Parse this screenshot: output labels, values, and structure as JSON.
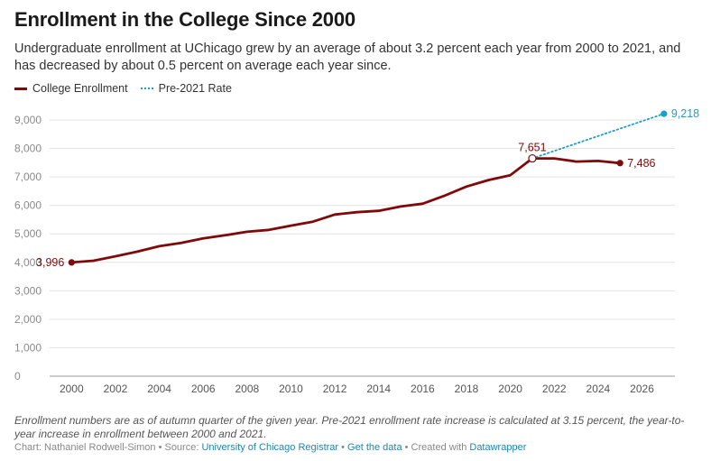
{
  "title": "Enrollment in the College Since 2000",
  "subtitle": "Undergraduate enrollment at UChicago grew by an average of about 3.2 percent each year from 2000 to 2021, and has decreased by about 0.5 percent on average each year since.",
  "legend": [
    {
      "label": "College Enrollment",
      "color": "#7f0a0a",
      "style": "solid"
    },
    {
      "label": "Pre-2021 Rate",
      "color": "#1ba1c9",
      "style": "dotted"
    }
  ],
  "notes": "Enrollment numbers are as of autumn quarter of the given year. Pre-2021 enrollment rate increase is calculated at 3.15 percent, the year-to-year increase in enrollment between 2000 and 2021.",
  "credit": {
    "prefix": "Chart: Nathaniel Rodwell-Simon • Source: ",
    "source": "University of Chicago Registrar",
    "sep1": " • ",
    "getdata": "Get the data",
    "sep2": " • Created with ",
    "tool": "Datawrapper"
  },
  "chart_data": {
    "type": "line",
    "xlim": [
      1999,
      2027.5
    ],
    "ylim": [
      0,
      9000
    ],
    "grid": true,
    "x_ticks": [
      2000,
      2002,
      2004,
      2006,
      2008,
      2010,
      2012,
      2014,
      2016,
      2018,
      2020,
      2022,
      2024,
      2026
    ],
    "y_ticks": [
      {
        "value": 0,
        "label": "0"
      },
      {
        "value": 1000,
        "label": "1,000"
      },
      {
        "value": 2000,
        "label": "2,000"
      },
      {
        "value": 3000,
        "label": "3,000"
      },
      {
        "value": 4000,
        "label": "4,000"
      },
      {
        "value": 5000,
        "label": "5,000"
      },
      {
        "value": 6000,
        "label": "6,000"
      },
      {
        "value": 7000,
        "label": "7,000"
      },
      {
        "value": 8000,
        "label": "8,000"
      },
      {
        "value": 9000,
        "label": "9,000"
      }
    ],
    "series": [
      {
        "name": "College Enrollment",
        "color": "#7f0a0a",
        "style": "solid",
        "x": [
          2000,
          2001,
          2002,
          2003,
          2004,
          2005,
          2006,
          2007,
          2008,
          2009,
          2010,
          2011,
          2012,
          2013,
          2014,
          2015,
          2016,
          2017,
          2018,
          2019,
          2020,
          2021,
          2022,
          2023,
          2024,
          2025
        ],
        "y": [
          3996,
          4055,
          4212,
          4375,
          4565,
          4680,
          4840,
          4950,
          5075,
          5140,
          5290,
          5430,
          5680,
          5760,
          5810,
          5960,
          6060,
          6340,
          6660,
          6890,
          7060,
          7651,
          7650,
          7540,
          7560,
          7486
        ]
      },
      {
        "name": "Pre-2021 Rate",
        "color": "#1ba1c9",
        "style": "dotted",
        "x": [
          2021,
          2027
        ],
        "y": [
          7651,
          9218
        ]
      }
    ],
    "annotations": [
      {
        "x": 2000,
        "y": 3996,
        "label": "3,996",
        "color": "#7f0a0a",
        "side": "left",
        "marker": "filled"
      },
      {
        "x": 2021,
        "y": 7651,
        "label": "7,651",
        "color": "#7f0a0a",
        "side": "above",
        "marker": "open"
      },
      {
        "x": 2025,
        "y": 7486,
        "label": "7,486",
        "color": "#7f0a0a",
        "side": "right",
        "marker": "filled"
      },
      {
        "x": 2027,
        "y": 9218,
        "label": "9,218",
        "color": "#1ba1c9",
        "side": "right",
        "marker": "filled"
      }
    ]
  }
}
